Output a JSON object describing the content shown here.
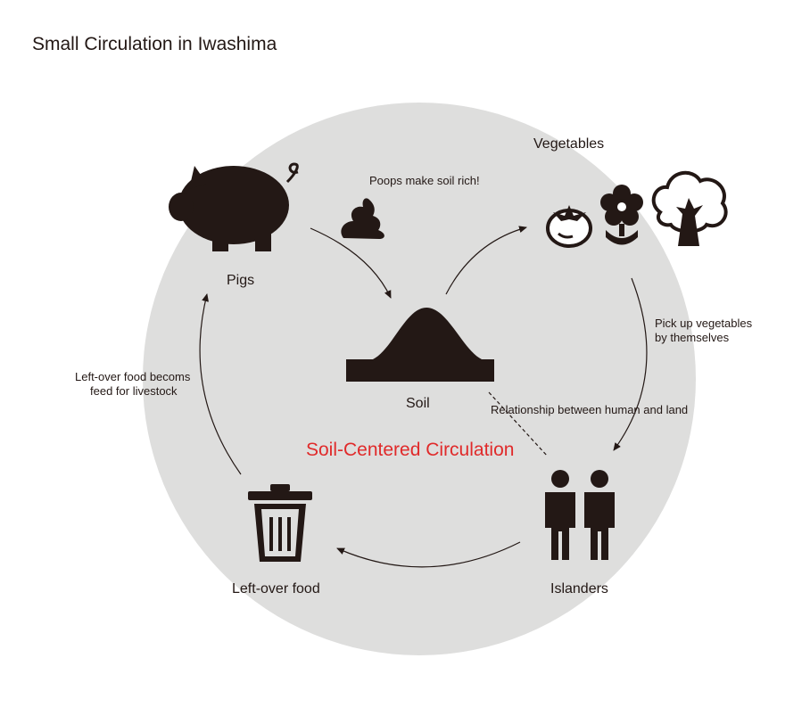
{
  "title": "Small Circulation in Iwashima",
  "center_label": "Soil-Centered Circulation",
  "colors": {
    "background_circle": "#dededd",
    "icon": "#231815",
    "accent": "#e02a2a"
  },
  "nodes": {
    "pigs": {
      "label": "Pigs",
      "icon": "pig-icon"
    },
    "soil": {
      "label": "Soil",
      "icon": "soil-mound-icon"
    },
    "vegetables": {
      "label": "Vegetables",
      "icons": [
        "tomato-icon",
        "flower-icon",
        "tree-icon"
      ]
    },
    "islanders": {
      "label": "Islanders",
      "icon": "people-icon"
    },
    "leftover": {
      "label": "Left-over food",
      "icon": "trash-bin-icon"
    }
  },
  "annotations": {
    "poop": {
      "text": "Poops make soil rich!",
      "icon": "poop-icon"
    },
    "pickup": {
      "line1": "Pick up vegetables",
      "line2": "by themselves"
    },
    "relationship": "Relationship between human and land",
    "feed": {
      "line1": "Left-over food becoms",
      "line2": "feed for livestock"
    }
  }
}
